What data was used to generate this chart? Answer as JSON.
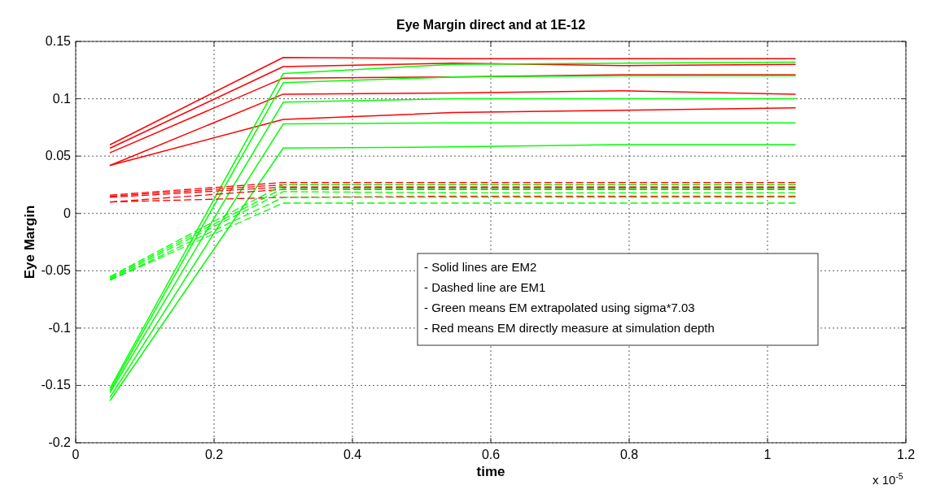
{
  "chart_data": {
    "type": "line",
    "title": "Eye Margin direct and at 1E-12",
    "xlabel": "time",
    "ylabel": "Eye Margin",
    "x": [
      0.05,
      0.3,
      0.545,
      0.79,
      1.04
    ],
    "xlim": [
      0,
      1.2
    ],
    "xticks": [
      0,
      0.2,
      0.4,
      0.6,
      0.8,
      1,
      1.2
    ],
    "ylim": [
      -0.2,
      0.15
    ],
    "yticks": [
      -0.2,
      -0.15,
      -0.1,
      -0.05,
      0,
      0.05,
      0.1,
      0.15
    ],
    "grid": true,
    "annotations": [
      "x 10$^{-5}$",
      "- Solid lines are EM2",
      "- Dashed line are EM1",
      "- Green means EM extrapolated using sigma*7.03",
      "- Red means EM directly measure at simulation depth"
    ],
    "series": [
      {
        "color": "#ff0000",
        "line_style": "solid",
        "values": [
          0.06,
          0.136,
          0.135,
          0.135,
          0.135
        ]
      },
      {
        "color": "#ff0000",
        "line_style": "solid",
        "values": [
          0.057,
          0.128,
          0.131,
          0.129,
          0.13
        ]
      },
      {
        "color": "#ff0000",
        "line_style": "solid",
        "values": [
          0.053,
          0.118,
          0.119,
          0.121,
          0.121
        ]
      },
      {
        "color": "#ff0000",
        "line_style": "solid",
        "values": [
          0.042,
          0.104,
          0.105,
          0.107,
          0.104
        ]
      },
      {
        "color": "#ff0000",
        "line_style": "solid",
        "values": [
          0.042,
          0.082,
          0.088,
          0.09,
          0.092
        ]
      },
      {
        "color": "#00ff00",
        "line_style": "solid",
        "values": [
          -0.152,
          0.122,
          0.13,
          0.131,
          0.132
        ]
      },
      {
        "color": "#00ff00",
        "line_style": "solid",
        "values": [
          -0.154,
          0.114,
          0.119,
          0.12,
          0.12
        ]
      },
      {
        "color": "#00ff00",
        "line_style": "solid",
        "values": [
          -0.156,
          0.097,
          0.1,
          0.1,
          0.1
        ]
      },
      {
        "color": "#00ff00",
        "line_style": "solid",
        "values": [
          -0.16,
          0.078,
          0.079,
          0.079,
          0.079
        ]
      },
      {
        "color": "#00ff00",
        "line_style": "solid",
        "values": [
          -0.163,
          0.057,
          0.058,
          0.06,
          0.06
        ]
      },
      {
        "color": "#ff0000",
        "line_style": "dashed",
        "values": [
          0.016,
          0.027,
          0.027,
          0.027,
          0.027
        ]
      },
      {
        "color": "#ff0000",
        "line_style": "dashed",
        "values": [
          0.015,
          0.025,
          0.025,
          0.025,
          0.025
        ]
      },
      {
        "color": "#ff0000",
        "line_style": "dashed",
        "values": [
          0.014,
          0.023,
          0.023,
          0.023,
          0.023
        ]
      },
      {
        "color": "#ff0000",
        "line_style": "dashed",
        "values": [
          0.01,
          0.021,
          0.021,
          0.021,
          0.021
        ]
      },
      {
        "color": "#ff0000",
        "line_style": "dashed",
        "values": [
          0.01,
          0.014,
          0.015,
          0.015,
          0.015
        ]
      },
      {
        "color": "#00ff00",
        "line_style": "dashed",
        "values": [
          -0.055,
          0.025,
          0.025,
          0.025,
          0.025
        ]
      },
      {
        "color": "#00ff00",
        "line_style": "dashed",
        "values": [
          -0.056,
          0.022,
          0.022,
          0.022,
          0.022
        ]
      },
      {
        "color": "#00ff00",
        "line_style": "dashed",
        "values": [
          -0.057,
          0.019,
          0.018,
          0.018,
          0.018
        ]
      },
      {
        "color": "#00ff00",
        "line_style": "dashed",
        "values": [
          -0.058,
          0.014,
          0.014,
          0.014,
          0.014
        ]
      },
      {
        "color": "#00ff00",
        "line_style": "dashed",
        "values": [
          -0.058,
          0.009,
          0.009,
          0.009,
          0.009
        ]
      }
    ]
  }
}
